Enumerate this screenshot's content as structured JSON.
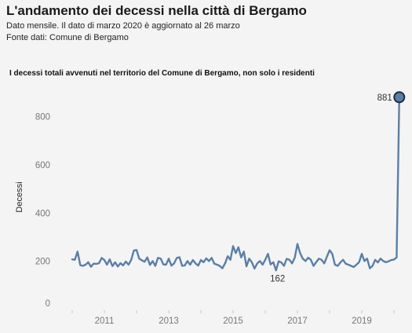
{
  "header": {
    "title": "L'andamento dei decessi nella città di Bergamo",
    "subtitle": "Dato mensile. Il dato di marzo 2020 è aggiornato al 26 marzo",
    "source": "Fonte dati: Comune di Bergamo"
  },
  "colors": {
    "background": "#f4f4f4",
    "line": "#5a7fa6",
    "marker_stroke": "#1d2b3a",
    "text": "#222222",
    "tick_text": "#777777"
  },
  "chart_data": {
    "type": "line",
    "title": "I decessi totali avvenuti nel territorio del Comune di Bergamo, non solo i residenti",
    "ylabel": "Decessi",
    "ylim": [
      0,
      900
    ],
    "yticks": [
      800,
      600,
      400,
      200,
      0
    ],
    "xticks": [
      "2011",
      "2013",
      "2015",
      "2017",
      "2019"
    ],
    "grid": false,
    "legend": "none",
    "x": [
      "2010-01",
      "2010-02",
      "2010-03",
      "2010-04",
      "2010-05",
      "2010-06",
      "2010-07",
      "2010-08",
      "2010-09",
      "2010-10",
      "2010-11",
      "2010-12",
      "2011-01",
      "2011-02",
      "2011-03",
      "2011-04",
      "2011-05",
      "2011-06",
      "2011-07",
      "2011-08",
      "2011-09",
      "2011-10",
      "2011-11",
      "2011-12",
      "2012-01",
      "2012-02",
      "2012-03",
      "2012-04",
      "2012-05",
      "2012-06",
      "2012-07",
      "2012-08",
      "2012-09",
      "2012-10",
      "2012-11",
      "2012-12",
      "2013-01",
      "2013-02",
      "2013-03",
      "2013-04",
      "2013-05",
      "2013-06",
      "2013-07",
      "2013-08",
      "2013-09",
      "2013-10",
      "2013-11",
      "2013-12",
      "2014-01",
      "2014-02",
      "2014-03",
      "2014-04",
      "2014-05",
      "2014-06",
      "2014-07",
      "2014-08",
      "2014-09",
      "2014-10",
      "2014-11",
      "2014-12",
      "2015-01",
      "2015-02",
      "2015-03",
      "2015-04",
      "2015-05",
      "2015-06",
      "2015-07",
      "2015-08",
      "2015-09",
      "2015-10",
      "2015-11",
      "2015-12",
      "2016-01",
      "2016-02",
      "2016-03",
      "2016-04",
      "2016-05",
      "2016-06",
      "2016-07",
      "2016-08",
      "2016-09",
      "2016-10",
      "2016-11",
      "2016-12",
      "2017-01",
      "2017-02",
      "2017-03",
      "2017-04",
      "2017-05",
      "2017-06",
      "2017-07",
      "2017-08",
      "2017-09",
      "2017-10",
      "2017-11",
      "2017-12",
      "2018-01",
      "2018-02",
      "2018-03",
      "2018-04",
      "2018-05",
      "2018-06",
      "2018-07",
      "2018-08",
      "2018-09",
      "2018-10",
      "2018-11",
      "2018-12",
      "2019-01",
      "2019-02",
      "2019-03",
      "2019-04",
      "2019-05",
      "2019-06",
      "2019-07",
      "2019-08",
      "2019-09",
      "2019-10",
      "2019-11",
      "2019-12",
      "2020-01",
      "2020-02",
      "2020-03"
    ],
    "series": [
      {
        "values": [
          208,
          206,
          240,
          184,
          181,
          186,
          196,
          177,
          190,
          189,
          192,
          214,
          205,
          186,
          208,
          180,
          196,
          178,
          192,
          183,
          199,
          186,
          206,
          245,
          247,
          211,
          204,
          198,
          216,
          185,
          201,
          181,
          214,
          211,
          187,
          186,
          211,
          182,
          191,
          214,
          217,
          181,
          183,
          201,
          186,
          205,
          191,
          182,
          205,
          196,
          212,
          201,
          214,
          190,
          186,
          181,
          171,
          191,
          221,
          206,
          263,
          234,
          258,
          216,
          240,
          179,
          211,
          196,
          170,
          191,
          201,
          186,
          206,
          231,
          187,
          196,
          162,
          200,
          195,
          181,
          210,
          206,
          191,
          215,
          272,
          234,
          211,
          201,
          215,
          206,
          181,
          196,
          211,
          206,
          191,
          219,
          246,
          231,
          186,
          181,
          195,
          206,
          190,
          186,
          181,
          176,
          186,
          196,
          231,
          201,
          211,
          171,
          181,
          206,
          195,
          211,
          201,
          196,
          200,
          205,
          207,
          216,
          881
        ]
      }
    ],
    "annotations": [
      {
        "x": "2020-03",
        "y": 881,
        "label": "881",
        "position": "left",
        "marker": true
      },
      {
        "x": "2016-05",
        "y": 162,
        "label": "162",
        "position": "below",
        "marker": false
      }
    ]
  }
}
